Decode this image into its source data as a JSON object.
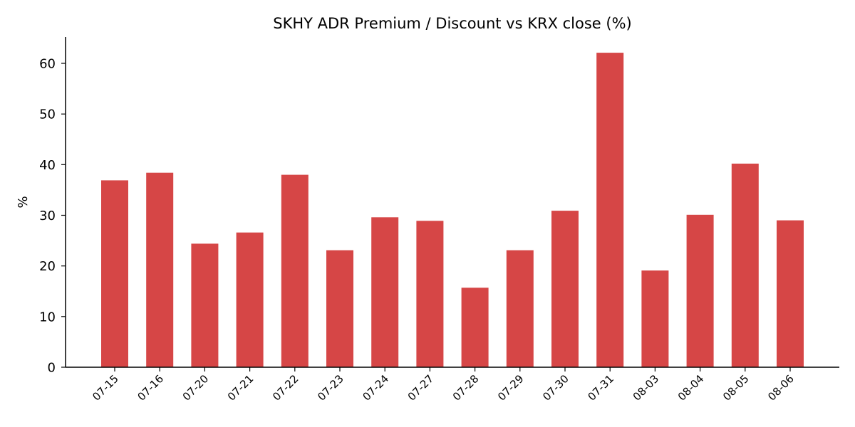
{
  "chart_data": {
    "type": "bar",
    "title": "SKHY ADR Premium / Discount vs KRX close (%)",
    "xlabel": "",
    "ylabel": "%",
    "categories": [
      "07-15",
      "07-16",
      "07-20",
      "07-21",
      "07-22",
      "07-23",
      "07-24",
      "07-27",
      "07-28",
      "07-29",
      "07-30",
      "07-31",
      "08-03",
      "08-04",
      "08-05",
      "08-06"
    ],
    "values": [
      36.9,
      38.4,
      24.4,
      26.6,
      38.0,
      23.1,
      29.6,
      28.9,
      15.7,
      23.1,
      30.9,
      62.1,
      19.1,
      30.1,
      40.2,
      29.0
    ],
    "ylim": [
      0,
      65.2
    ],
    "yticks": [
      0,
      10,
      20,
      30,
      40,
      50,
      60
    ],
    "grid": false,
    "legend": "none",
    "bar_color": "#d64646"
  }
}
